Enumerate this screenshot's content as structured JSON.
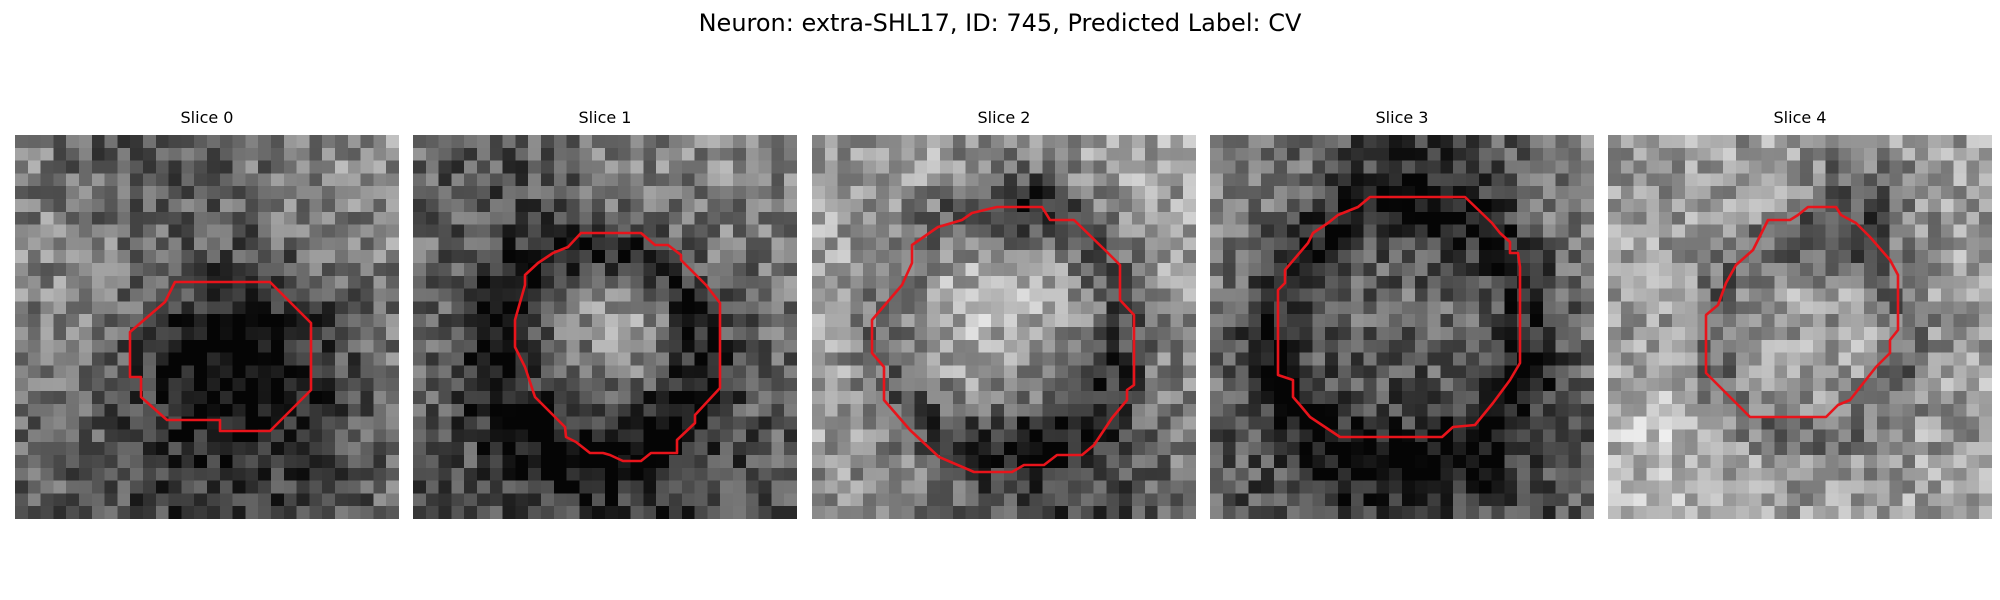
{
  "figure": {
    "title": "Neuron: extra-SHL17, ID: 745, Predicted Label: CV",
    "contour_color": "#e8141b"
  },
  "slices": [
    {
      "title": "Slice 0"
    },
    {
      "title": "Slice 1"
    },
    {
      "title": "Slice 2"
    },
    {
      "title": "Slice 3"
    },
    {
      "title": "Slice 4"
    }
  ]
}
